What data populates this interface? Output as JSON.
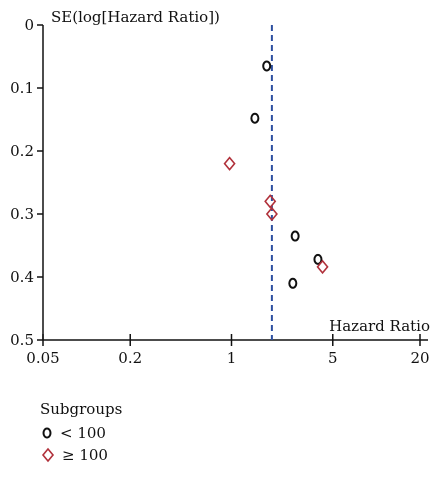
{
  "chart_data": {
    "type": "scatter",
    "title": "",
    "ylabel": "SE(log[Hazard Ratio])",
    "xlabel": "Hazard Ratio",
    "x_scale": "log",
    "xlim": [
      0.05,
      20
    ],
    "ylim": [
      0,
      0.5
    ],
    "y_inverted": true,
    "x_ticks": [
      0.05,
      0.2,
      1,
      5,
      20
    ],
    "x_tick_labels": [
      "0.05",
      "0.2",
      "1",
      "5",
      "20"
    ],
    "y_ticks": [
      0,
      0.1,
      0.2,
      0.3,
      0.4,
      0.5
    ],
    "y_tick_labels": [
      "0",
      "0.1",
      "0.2",
      "0.3",
      "0.4",
      "0.5"
    ],
    "reference_line": {
      "x": 1.9,
      "style": "dashed",
      "color": "#2c4fa0"
    },
    "legend": {
      "title": "Subgroups",
      "placement": "bottom-left",
      "entries": [
        {
          "label": "< 100",
          "marker": "circle",
          "color": "#111111"
        },
        {
          "label": "≥ 100",
          "marker": "diamond",
          "color": "#b0303a"
        }
      ]
    },
    "series": [
      {
        "name": "< 100",
        "marker": "circle",
        "color": "#111111",
        "points": [
          {
            "x": 1.75,
            "y": 0.065
          },
          {
            "x": 1.45,
            "y": 0.148
          },
          {
            "x": 2.75,
            "y": 0.335
          },
          {
            "x": 3.95,
            "y": 0.372
          },
          {
            "x": 2.65,
            "y": 0.41
          }
        ]
      },
      {
        "name": "≥ 100",
        "marker": "diamond",
        "color": "#b0303a",
        "points": [
          {
            "x": 0.97,
            "y": 0.22
          },
          {
            "x": 1.85,
            "y": 0.28
          },
          {
            "x": 1.9,
            "y": 0.3
          },
          {
            "x": 4.25,
            "y": 0.384
          }
        ]
      }
    ]
  }
}
